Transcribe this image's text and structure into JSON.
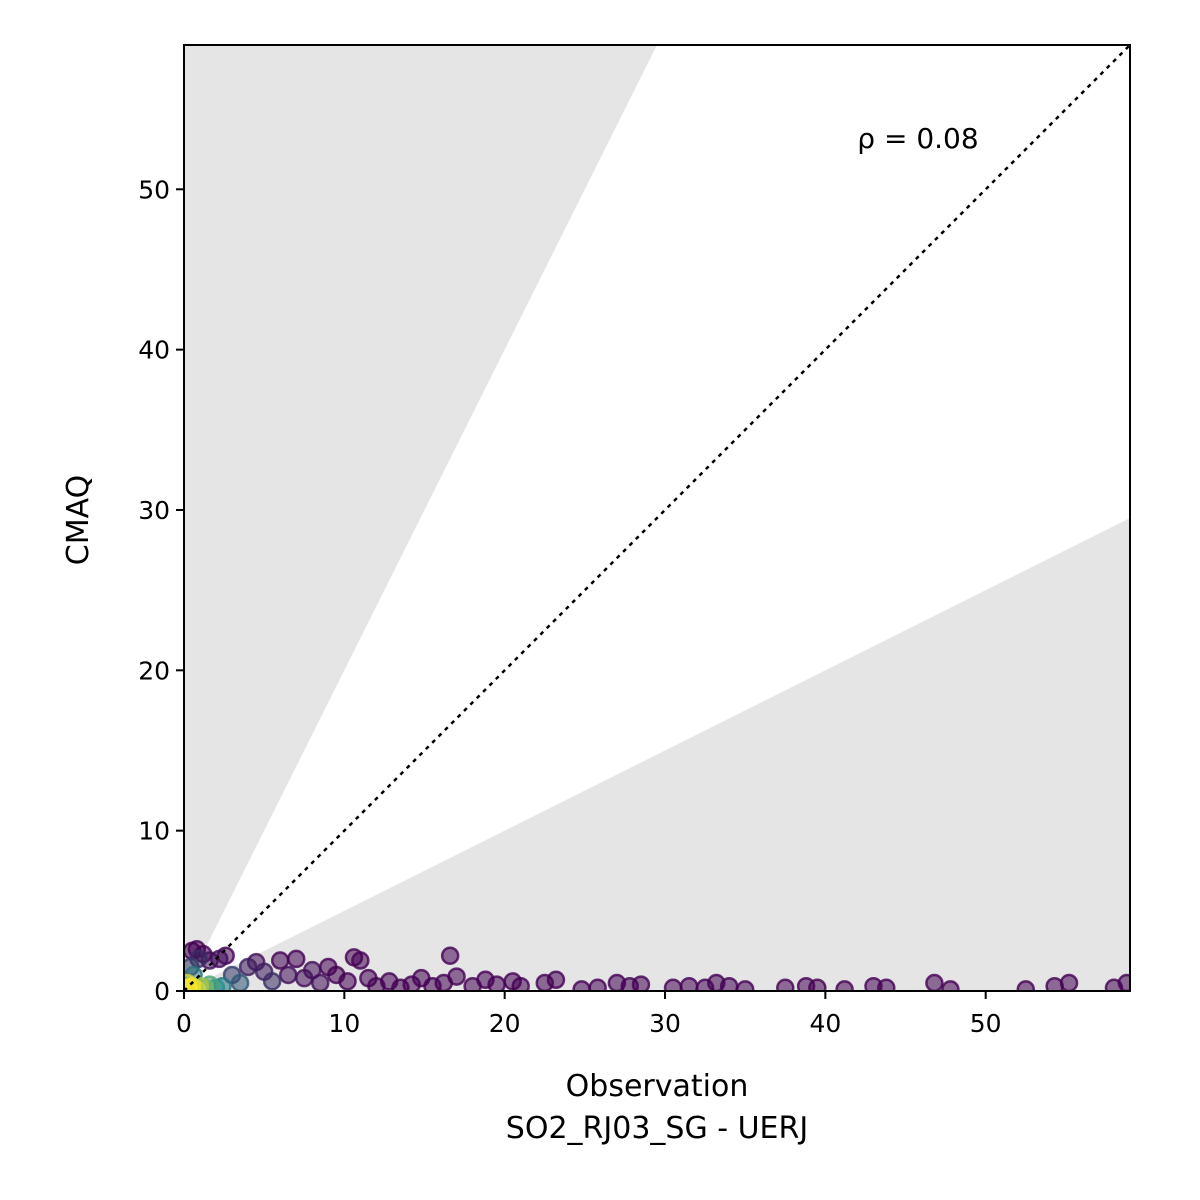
{
  "chart_data": {
    "type": "scatter",
    "title": "",
    "xlabel": "Observation",
    "xlabel_sub": "SO2_RJ03_SG - UERJ",
    "ylabel": "CMAQ",
    "xlim": [
      0,
      59
    ],
    "ylim": [
      0,
      59
    ],
    "xticks": [
      0,
      10,
      20,
      30,
      40,
      50
    ],
    "yticks": [
      0,
      10,
      20,
      30,
      40,
      50
    ],
    "annotation": "ρ = 0.08",
    "grid": false,
    "reference_line": "1:1 dotted",
    "shaded_region": "outside factor-of-2 band (y > 2x and y < 0.5x)",
    "colors": {
      "shade": "#e5e5e5",
      "point_low_density": "#440154",
      "point_mid_density": "#21918c",
      "point_high_density": "#fde725",
      "frame": "#000000"
    },
    "points": [
      {
        "x": 0.3,
        "y": 0.2,
        "d": 1.0
      },
      {
        "x": 0.5,
        "y": 0.3,
        "d": 0.95
      },
      {
        "x": 0.8,
        "y": 0.1,
        "d": 0.9
      },
      {
        "x": 0.2,
        "y": 0.5,
        "d": 0.9
      },
      {
        "x": 1.0,
        "y": 0.3,
        "d": 0.8
      },
      {
        "x": 1.3,
        "y": 0.2,
        "d": 0.7
      },
      {
        "x": 1.6,
        "y": 0.4,
        "d": 0.6
      },
      {
        "x": 2.0,
        "y": 0.2,
        "d": 0.5
      },
      {
        "x": 2.4,
        "y": 0.3,
        "d": 0.4
      },
      {
        "x": 0.6,
        "y": 1.0,
        "d": 0.4
      },
      {
        "x": 0.4,
        "y": 1.5,
        "d": 0.2
      },
      {
        "x": 0.9,
        "y": 2.0,
        "d": 0.15
      },
      {
        "x": 0.5,
        "y": 2.5,
        "d": 0.0
      },
      {
        "x": 0.8,
        "y": 2.6,
        "d": 0.0
      },
      {
        "x": 1.2,
        "y": 2.3,
        "d": 0.0
      },
      {
        "x": 1.6,
        "y": 1.9,
        "d": 0.05
      },
      {
        "x": 2.2,
        "y": 2.0,
        "d": 0.05
      },
      {
        "x": 2.6,
        "y": 2.2,
        "d": 0.0
      },
      {
        "x": 3.0,
        "y": 1.0,
        "d": 0.2
      },
      {
        "x": 3.5,
        "y": 0.5,
        "d": 0.3
      },
      {
        "x": 4.0,
        "y": 1.5,
        "d": 0.1
      },
      {
        "x": 4.5,
        "y": 1.8,
        "d": 0.05
      },
      {
        "x": 5.0,
        "y": 1.2,
        "d": 0.1
      },
      {
        "x": 5.5,
        "y": 0.6,
        "d": 0.15
      },
      {
        "x": 6.0,
        "y": 1.9,
        "d": 0.0
      },
      {
        "x": 6.5,
        "y": 1.0,
        "d": 0.05
      },
      {
        "x": 7.0,
        "y": 2.0,
        "d": 0.0
      },
      {
        "x": 7.5,
        "y": 0.8,
        "d": 0.05
      },
      {
        "x": 8.0,
        "y": 1.3,
        "d": 0.05
      },
      {
        "x": 8.5,
        "y": 0.5,
        "d": 0.05
      },
      {
        "x": 9.0,
        "y": 1.5,
        "d": 0.0
      },
      {
        "x": 9.5,
        "y": 1.0,
        "d": 0.0
      },
      {
        "x": 10.2,
        "y": 0.6,
        "d": 0.0
      },
      {
        "x": 10.6,
        "y": 2.1,
        "d": 0.0
      },
      {
        "x": 11.0,
        "y": 1.9,
        "d": 0.0
      },
      {
        "x": 11.5,
        "y": 0.8,
        "d": 0.0
      },
      {
        "x": 12.0,
        "y": 0.3,
        "d": 0.0
      },
      {
        "x": 12.8,
        "y": 0.6,
        "d": 0.0
      },
      {
        "x": 13.5,
        "y": 0.2,
        "d": 0.0
      },
      {
        "x": 14.2,
        "y": 0.4,
        "d": 0.0
      },
      {
        "x": 14.8,
        "y": 0.8,
        "d": 0.0
      },
      {
        "x": 15.5,
        "y": 0.3,
        "d": 0.0
      },
      {
        "x": 16.2,
        "y": 0.5,
        "d": 0.0
      },
      {
        "x": 16.6,
        "y": 2.2,
        "d": 0.0
      },
      {
        "x": 17.0,
        "y": 0.9,
        "d": 0.0
      },
      {
        "x": 18.0,
        "y": 0.3,
        "d": 0.0
      },
      {
        "x": 18.8,
        "y": 0.7,
        "d": 0.0
      },
      {
        "x": 19.5,
        "y": 0.4,
        "d": 0.0
      },
      {
        "x": 20.5,
        "y": 0.6,
        "d": 0.0
      },
      {
        "x": 21.0,
        "y": 0.3,
        "d": 0.0
      },
      {
        "x": 22.5,
        "y": 0.5,
        "d": 0.0
      },
      {
        "x": 23.2,
        "y": 0.7,
        "d": 0.0
      },
      {
        "x": 24.8,
        "y": 0.1,
        "d": 0.0
      },
      {
        "x": 25.8,
        "y": 0.2,
        "d": 0.0
      },
      {
        "x": 27.0,
        "y": 0.5,
        "d": 0.0
      },
      {
        "x": 27.8,
        "y": 0.3,
        "d": 0.0
      },
      {
        "x": 28.5,
        "y": 0.4,
        "d": 0.0
      },
      {
        "x": 30.5,
        "y": 0.2,
        "d": 0.0
      },
      {
        "x": 31.5,
        "y": 0.3,
        "d": 0.0
      },
      {
        "x": 32.5,
        "y": 0.2,
        "d": 0.0
      },
      {
        "x": 33.2,
        "y": 0.5,
        "d": 0.0
      },
      {
        "x": 34.0,
        "y": 0.3,
        "d": 0.0
      },
      {
        "x": 35.0,
        "y": 0.1,
        "d": 0.0
      },
      {
        "x": 37.5,
        "y": 0.2,
        "d": 0.0
      },
      {
        "x": 38.8,
        "y": 0.3,
        "d": 0.0
      },
      {
        "x": 39.5,
        "y": 0.2,
        "d": 0.0
      },
      {
        "x": 41.2,
        "y": 0.1,
        "d": 0.0
      },
      {
        "x": 43.0,
        "y": 0.3,
        "d": 0.0
      },
      {
        "x": 43.8,
        "y": 0.2,
        "d": 0.0
      },
      {
        "x": 46.8,
        "y": 0.5,
        "d": 0.0
      },
      {
        "x": 47.8,
        "y": 0.1,
        "d": 0.0
      },
      {
        "x": 52.5,
        "y": 0.1,
        "d": 0.0
      },
      {
        "x": 54.3,
        "y": 0.3,
        "d": 0.0
      },
      {
        "x": 55.2,
        "y": 0.5,
        "d": 0.0
      },
      {
        "x": 58.0,
        "y": 0.2,
        "d": 0.0
      },
      {
        "x": 58.8,
        "y": 0.5,
        "d": 0.0
      }
    ]
  }
}
